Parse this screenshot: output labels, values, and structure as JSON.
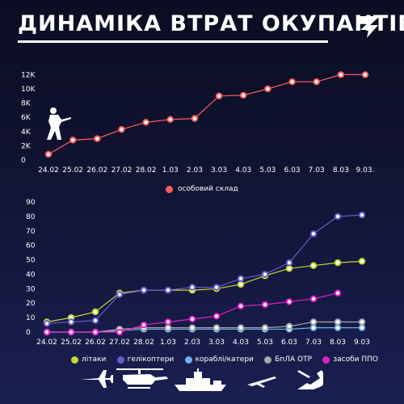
{
  "header": {
    "title": "ДИНАМІКА ВТРАТ ОКУПАНТІВ",
    "logo_icon": "stylized-3-logo-icon"
  },
  "colors": {
    "personnel": "#ff5c5c",
    "planes": "#c6d833",
    "helicopters": "#6a5acd",
    "ships": "#6fb3e8",
    "uav": "#a8a8a8",
    "air_defense": "#e020c8"
  },
  "chart_data": [
    {
      "type": "line",
      "categories": [
        "24.02",
        "25.02",
        "26.02",
        "27.02",
        "28.02",
        "1.03",
        "2.03",
        "3.03",
        "4.03",
        "5.03",
        "6.03",
        "7.03",
        "8.03",
        "9.03."
      ],
      "y_ticks": [
        "0",
        "2K",
        "4K",
        "6K",
        "8K",
        "10K",
        "12K"
      ],
      "ylim": [
        0,
        12500
      ],
      "grid": false,
      "legend_position": "bottom-center",
      "series": [
        {
          "name": "особовий склад",
          "color": "#ff5c5c",
          "values": [
            800,
            2800,
            3000,
            4300,
            5300,
            5700,
            5840,
            9000,
            9100,
            10000,
            11000,
            11000,
            12000,
            12000
          ]
        }
      ],
      "decor_icon": "soldier-silhouette-icon"
    },
    {
      "type": "line",
      "categories": [
        "24.02",
        "25.02",
        "26.02",
        "27.02",
        "28.02",
        "1.03",
        "2.03",
        "3.03",
        "4.03",
        "5.03",
        "6.03",
        "7.03",
        "8.03",
        "9.03"
      ],
      "y_ticks": [
        "0",
        "10",
        "20",
        "30",
        "40",
        "50",
        "60",
        "70",
        "80",
        "90"
      ],
      "ylim": [
        0,
        90
      ],
      "grid": false,
      "legend_position": "bottom",
      "series": [
        {
          "name": "літаки",
          "color": "#c6d833",
          "values": [
            7,
            10,
            14,
            27,
            29,
            29,
            29,
            30,
            33,
            39,
            44,
            46,
            48,
            49
          ]
        },
        {
          "name": "гелікоптери",
          "color": "#6a5acd",
          "values": [
            6,
            7,
            8,
            26,
            29,
            29,
            31,
            31,
            37,
            40,
            48,
            68,
            80,
            81
          ]
        },
        {
          "name": "кораблі/катери",
          "color": "#6fb3e8",
          "values": [
            0,
            0,
            0,
            1,
            2,
            2,
            2,
            2,
            2,
            2,
            2,
            3,
            3,
            3
          ]
        },
        {
          "name": "БпЛА ОТР",
          "color": "#a8a8a8",
          "values": [
            0,
            0,
            0,
            2,
            3,
            3,
            3,
            3,
            3,
            3,
            4,
            7,
            7,
            7
          ]
        },
        {
          "name": "засоби ППО",
          "color": "#e020c8",
          "values": [
            0,
            0,
            0,
            0,
            5,
            7,
            9,
            11,
            18,
            19,
            21,
            23,
            27,
            null
          ]
        }
      ],
      "decor_icons": [
        "plane-silhouette-icon",
        "helicopter-silhouette-icon",
        "warship-silhouette-icon",
        "drone-silhouette-icon",
        "missile-launcher-silhouette-icon"
      ]
    }
  ]
}
